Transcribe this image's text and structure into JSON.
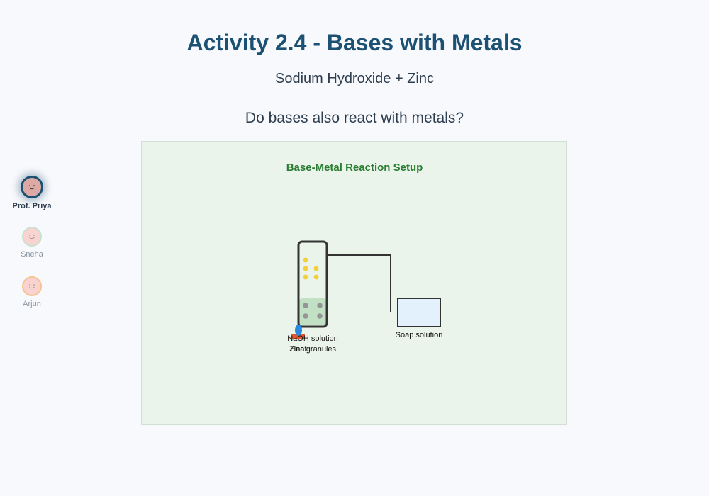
{
  "header": {
    "title": "Activity 2.4 - Bases with Metals",
    "subtitle": "Sodium Hydroxide + Zinc",
    "question": "Do bases also react with metals?"
  },
  "participants": [
    {
      "name": "Prof. Priya",
      "active": true,
      "icon": "smiley-face-icon"
    },
    {
      "name": "Sneha",
      "active": false,
      "icon": "smiley-face-icon"
    },
    {
      "name": "Arjun",
      "active": false,
      "icon": "smiley-face-icon"
    }
  ],
  "diagram": {
    "title": "Base-Metal Reaction Setup",
    "labels": {
      "naoh": "NaOH solution",
      "heat": "Heat",
      "zinc": "Zinc granules",
      "soap": "Soap solution"
    }
  },
  "colors": {
    "title": "#1d5173",
    "diagram_title": "#2a7d33",
    "diagram_bg": "#eaf4ea",
    "bubbles": "#f2cf3c",
    "zinc": "#949494",
    "flame": "#e8552a",
    "flame_core": "#2b8ae0"
  }
}
